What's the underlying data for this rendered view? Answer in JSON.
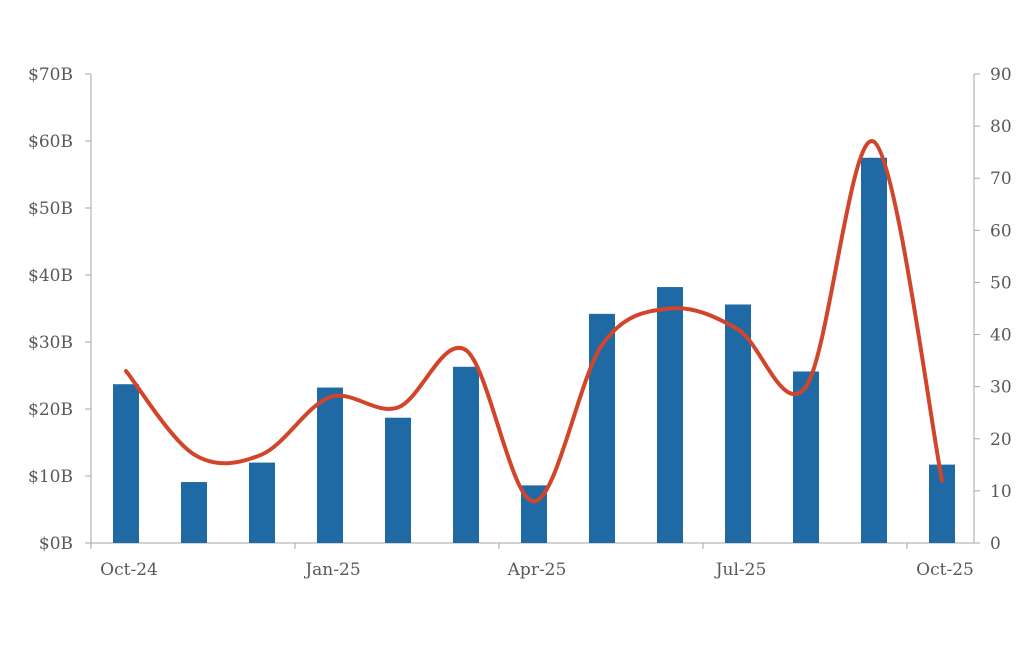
{
  "chart_data": {
    "type": "bar",
    "title": "",
    "xlabel": "",
    "ylabel": "",
    "x_tick_labels": [
      "Oct-24",
      "Jan-25",
      "Apr-25",
      "Jul-25",
      "Oct-25"
    ],
    "categories": [
      "Oct-24",
      "Nov-24",
      "Dec-24",
      "Jan-25",
      "Feb-25",
      "Mar-25",
      "Apr-25",
      "May-25",
      "Jun-25",
      "Jul-25",
      "Aug-25",
      "Sep-25",
      "Oct-25"
    ],
    "y_left": {
      "ylim": [
        0,
        70
      ],
      "ticks": [
        0,
        10,
        20,
        30,
        40,
        50,
        60,
        70
      ],
      "tick_labels": [
        "$0B",
        "$10B",
        "$20B",
        "$30B",
        "$40B",
        "$50B",
        "$60B",
        "$70B"
      ]
    },
    "y_right": {
      "ylim": [
        0,
        90
      ],
      "ticks": [
        0,
        10,
        20,
        30,
        40,
        50,
        60,
        70,
        80,
        90
      ],
      "tick_labels": [
        "0",
        "10",
        "20",
        "30",
        "40",
        "50",
        "60",
        "70",
        "80",
        "90"
      ]
    },
    "grid": false,
    "legend": "none",
    "series": [
      {
        "type": "bar",
        "axis": "left",
        "color": "#1f6aa5",
        "values": [
          23.7,
          9.1,
          12.0,
          23.2,
          18.7,
          26.3,
          8.6,
          34.2,
          38.2,
          35.6,
          25.6,
          57.5,
          11.7
        ]
      },
      {
        "type": "line",
        "axis": "right",
        "color": "#d1452a",
        "smooth": true,
        "values": [
          33,
          17,
          17,
          28,
          26,
          37,
          8,
          38,
          45,
          41,
          30,
          77,
          12
        ]
      }
    ]
  }
}
